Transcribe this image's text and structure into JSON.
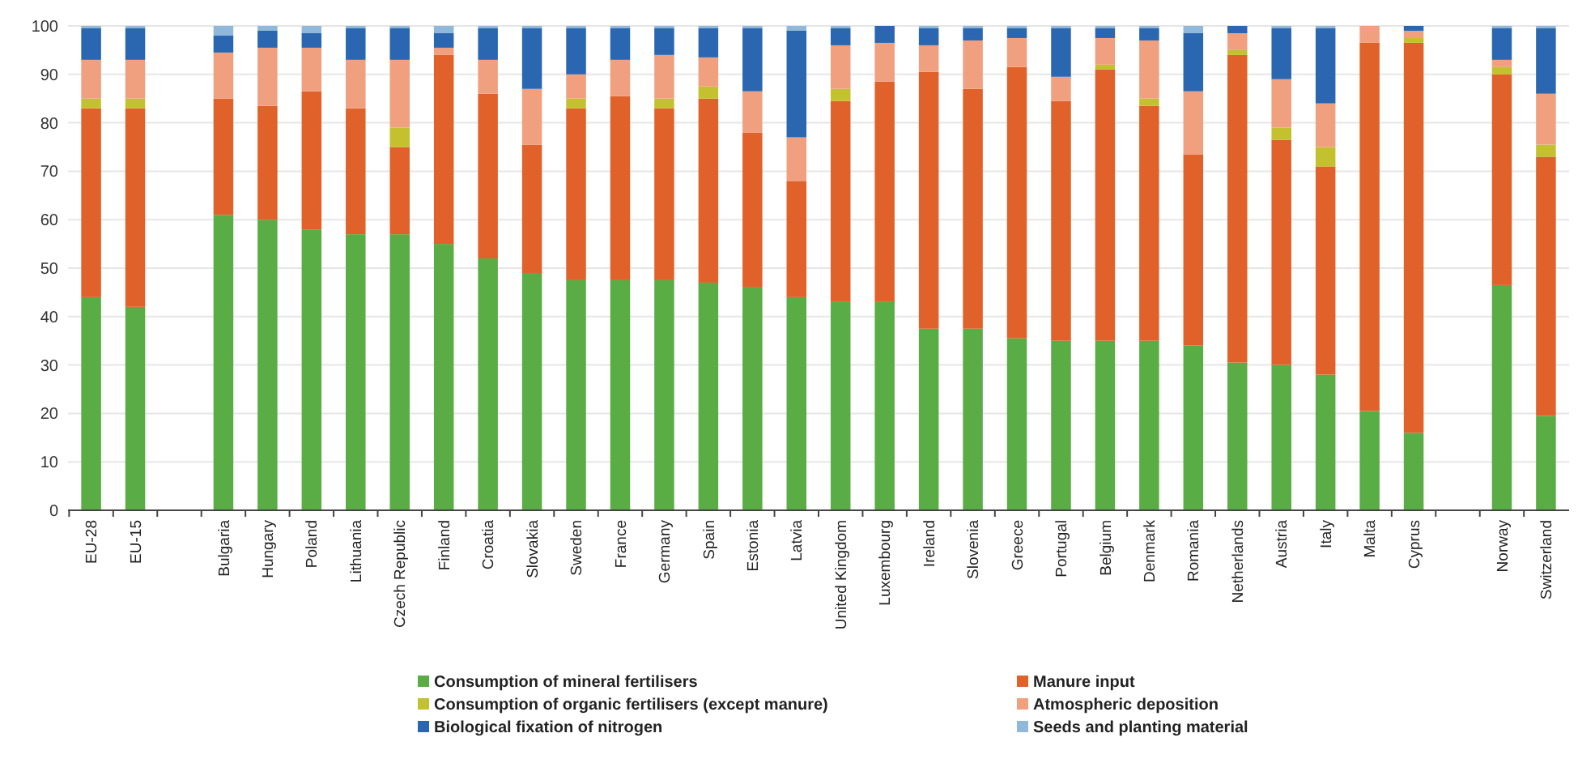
{
  "chart_data": {
    "type": "bar",
    "stacked": true,
    "categories": [
      "EU-28",
      "EU-15",
      null,
      "Bulgaria",
      "Hungary",
      "Poland",
      "Lithuania",
      "Czech Republic",
      "Finland",
      "Croatia",
      "Slovakia",
      "Sweden",
      "France",
      "Germany",
      "Spain",
      "Estonia",
      "Latvia",
      "United Kingdom",
      "Luxembourg",
      "Ireland",
      "Slovenia",
      "Greece",
      "Portugal",
      "Belgium",
      "Denmark",
      "Romania",
      "Netherlands",
      "Austria",
      "Italy",
      "Malta",
      "Cyprus",
      null,
      "Norway",
      "Switzerland"
    ],
    "series": [
      {
        "name": "Consumption of mineral fertilisers",
        "color": "#5aac44",
        "values": [
          44,
          42,
          null,
          61,
          60,
          58,
          57,
          57,
          55,
          52,
          49,
          47.5,
          47.5,
          47.5,
          47,
          46,
          44,
          43,
          43,
          37.5,
          37.5,
          35.5,
          35,
          35,
          35,
          34,
          30.5,
          30,
          28,
          20.5,
          16,
          null,
          46.5,
          19.5
        ]
      },
      {
        "name": "Manure input",
        "color": "#e0622a",
        "values": [
          39,
          41,
          null,
          24,
          23.5,
          28.5,
          26,
          18,
          39,
          34,
          26.5,
          35.5,
          38,
          35.5,
          38,
          32,
          24,
          41.5,
          45.5,
          53,
          49.5,
          56,
          49.5,
          56,
          48.5,
          39.5,
          63.5,
          46.5,
          43,
          76,
          80.5,
          null,
          43.5,
          53.5
        ]
      },
      {
        "name": "Consumption of organic fertilisers (except manure)",
        "color": "#c3c12e",
        "values": [
          2,
          2,
          null,
          0,
          0,
          0,
          0,
          4,
          0,
          0,
          0,
          2,
          0,
          2,
          2.5,
          0,
          0,
          2.5,
          0,
          0,
          0,
          0,
          0,
          1,
          1.5,
          0,
          1,
          2.5,
          4,
          0,
          1,
          null,
          1.5,
          2.5
        ]
      },
      {
        "name": "Atmospheric deposition",
        "color": "#f0a07f",
        "values": [
          8,
          8,
          null,
          9.5,
          12,
          9,
          10,
          14,
          1.5,
          7,
          11.5,
          5,
          7.5,
          9,
          6,
          8.5,
          9,
          9,
          8,
          5.5,
          10,
          6,
          5,
          5.5,
          12,
          13,
          3.5,
          10,
          9,
          3.5,
          1.5,
          null,
          1.5,
          10.5
        ]
      },
      {
        "name": "Biological fixation of nitrogen",
        "color": "#2a67b0",
        "values": [
          6.5,
          6.5,
          null,
          3.5,
          3.5,
          3,
          6.5,
          6.5,
          3,
          6.5,
          12.5,
          9.5,
          6.5,
          5.5,
          6,
          13,
          22,
          3.5,
          3.5,
          3.5,
          2.5,
          2,
          10,
          2,
          2.5,
          12,
          1.5,
          10.5,
          15.5,
          0,
          1,
          null,
          6.5,
          13.5
        ]
      },
      {
        "name": "Seeds and planting material",
        "color": "#8fb8db",
        "values": [
          0.5,
          0.5,
          null,
          2,
          1,
          1.5,
          0.5,
          0.5,
          1.5,
          0.5,
          0.5,
          0.5,
          0.5,
          0.5,
          0.5,
          0.5,
          1,
          0.5,
          0,
          0.5,
          0.5,
          0.5,
          0.5,
          0.5,
          0.5,
          1.5,
          0,
          0.5,
          0.5,
          0,
          0,
          null,
          0.5,
          0.5
        ]
      }
    ],
    "ylim": [
      0,
      100
    ],
    "yticks": [
      0,
      10,
      20,
      30,
      40,
      50,
      60,
      70,
      80,
      90,
      100
    ],
    "grid": "y",
    "legend": "bottom"
  }
}
